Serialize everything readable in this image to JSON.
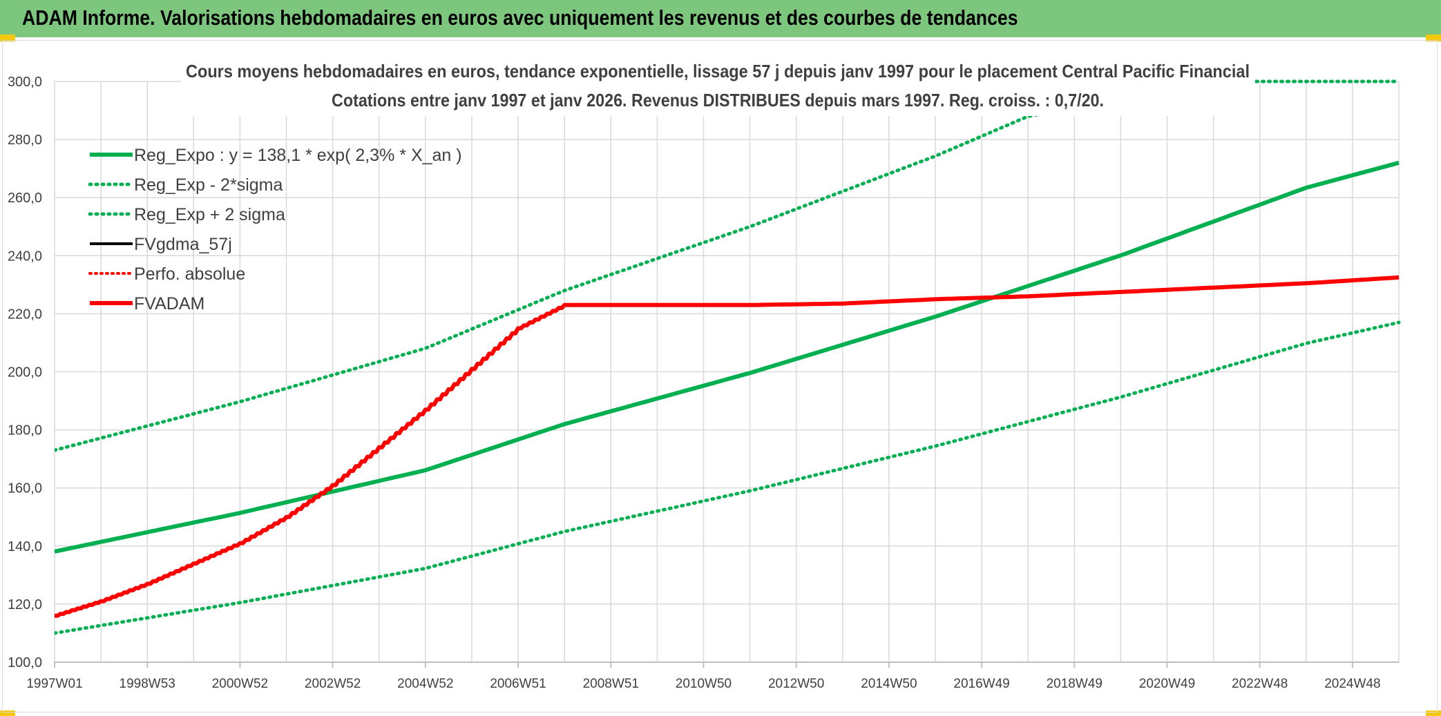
{
  "banner": {
    "title": "ADAM Informe. Valorisations hebdomadaires en euros avec uniquement les revenus et des courbes de tendances"
  },
  "colors": {
    "banner_bg": "#7dc67d",
    "trend_green": "#00b050",
    "adam_red": "#ff0000",
    "black": "#000000",
    "grid": "#d9d9d9"
  },
  "chart_data": {
    "type": "line",
    "title": "Cours moyens hebdomadaires en euros, tendance exponentielle, lissage 57 j depuis janv 1997 pour le placement Central Pacific Financial",
    "subtitle": "Cotations entre janv 1997 et janv 2026. Revenus DISTRIBUES depuis mars 1997. Reg. croiss. : 0,7/20.",
    "xlabel": "",
    "ylabel": "",
    "ylim": [
      100,
      300
    ],
    "yticks": [
      "100,0",
      "120,0",
      "140,0",
      "160,0",
      "180,0",
      "200,0",
      "220,0",
      "240,0",
      "260,0",
      "280,0",
      "300,0"
    ],
    "x_range_years": [
      1997.0,
      2026.0
    ],
    "xticks": [
      "1997W01",
      "1998W53",
      "2000W52",
      "2002W52",
      "2004W52",
      "2006W51",
      "2008W51",
      "2010W50",
      "2012W50",
      "2014W50",
      "2016W49",
      "2018W49",
      "2020W49",
      "2022W48",
      "2024W48"
    ],
    "grid": true,
    "legend_position": "top-left",
    "series": [
      {
        "name": "Reg_Expo : y = 138,1 * exp( 2,3% *  X_an )",
        "style": "solid-green",
        "x": [
          1997,
          2001,
          2005,
          2008,
          2012,
          2016,
          2020,
          2024,
          2026
        ],
        "y": [
          138.1,
          151.4,
          166.1,
          182.0,
          199.6,
          219.0,
          240.1,
          263.4,
          272.0
        ]
      },
      {
        "name": "Reg_Exp - 2*sigma",
        "style": "dotted-green",
        "x": [
          1997,
          2001,
          2005,
          2008,
          2012,
          2016,
          2020,
          2024,
          2026
        ],
        "y": [
          110.0,
          120.5,
          132.3,
          145.0,
          159.0,
          174.4,
          191.3,
          209.8,
          217.0
        ]
      },
      {
        "name": "Reg_Exp + 2 sigma",
        "style": "dotted-green",
        "x": [
          1997,
          2001,
          2005,
          2008,
          2012,
          2016,
          2018,
          2022,
          2026
        ],
        "y": [
          173.0,
          189.7,
          208.1,
          228.0,
          250.0,
          274.3,
          288.0,
          300.0,
          300.0
        ]
      },
      {
        "name": "FVgdma_57j",
        "style": "solid-black",
        "x": [],
        "y": []
      },
      {
        "name": "Perfo. absolue",
        "style": "dotted-red",
        "x": [],
        "y": []
      },
      {
        "name": "FVADAM",
        "style": "solid-red-stepped",
        "x": [
          1997.0,
          1998.0,
          1999.0,
          2000.0,
          2001.0,
          2002.0,
          2003.0,
          2004.0,
          2005.0,
          2006.0,
          2007.0,
          2008.0,
          2010.0,
          2012.0,
          2014.0,
          2016.0,
          2018.0,
          2020.0,
          2022.0,
          2024.0,
          2026.0
        ],
        "y": [
          116.0,
          121.0,
          127.0,
          134.0,
          141.0,
          150.0,
          161.0,
          174.0,
          187.0,
          201.0,
          215.0,
          223.0,
          223.0,
          223.0,
          223.5,
          225.0,
          226.0,
          227.5,
          229.0,
          230.5,
          232.5
        ]
      }
    ]
  }
}
